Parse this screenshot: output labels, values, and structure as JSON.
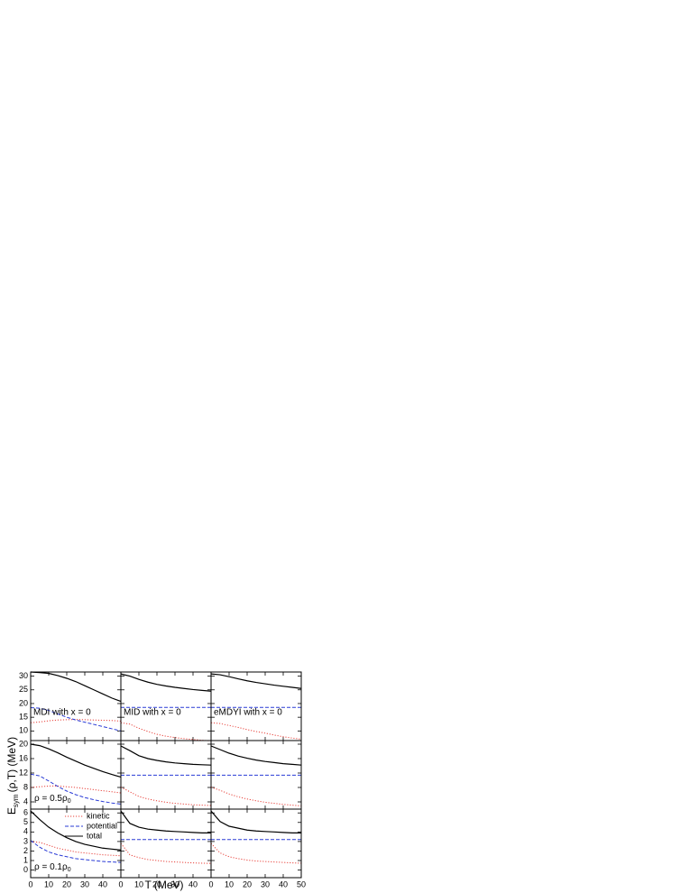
{
  "figure": {
    "xlabel": "T (MeV)",
    "ylabel": {
      "main": "E",
      "sub": "sym",
      "rest": "(ρ,T) (MeV)"
    }
  },
  "chart_data": [
    {
      "type": "line",
      "annotation": "MDI with x = 0",
      "x": [
        0,
        5,
        10,
        15,
        20,
        25,
        30,
        35,
        40,
        45,
        50
      ],
      "xlim": [
        0,
        50
      ],
      "ylim": [
        6.5,
        31.5
      ],
      "yticks": [
        10,
        15,
        20,
        25,
        30
      ],
      "series": [
        {
          "color": "#e8413a",
          "style": "dotted",
          "values": [
            13,
            13.3,
            13.7,
            14,
            14.1,
            14.2,
            14.1,
            14,
            13.9,
            13.8,
            13.6
          ]
        },
        {
          "color": "#2a3bd6",
          "style": "dashed",
          "values": [
            18.5,
            18.3,
            17.5,
            16.2,
            15,
            14,
            13.2,
            12.4,
            11.6,
            10.8,
            10
          ]
        },
        {
          "color": "#000000",
          "style": "solid",
          "values": [
            31.5,
            31.3,
            31,
            30.2,
            29.2,
            28,
            26.5,
            25,
            23.5,
            22,
            20.8
          ]
        }
      ]
    },
    {
      "type": "line",
      "annotation": "MID with x = 0",
      "x": [
        0,
        5,
        10,
        15,
        20,
        25,
        30,
        35,
        40,
        45,
        50
      ],
      "xlim": [
        0,
        50
      ],
      "ylim": [
        6.5,
        31.5
      ],
      "series": [
        {
          "color": "#e8413a",
          "style": "dotted",
          "values": [
            13,
            12.5,
            11,
            9.8,
            8.8,
            8.1,
            7.6,
            7.2,
            6.9,
            6.6,
            6.4
          ]
        },
        {
          "color": "#2a3bd6",
          "style": "dashed",
          "values": [
            18.6,
            18.6,
            18.6,
            18.6,
            18.6,
            18.6,
            18.6,
            18.6,
            18.6,
            18.6,
            18.6
          ]
        },
        {
          "color": "#000000",
          "style": "solid",
          "values": [
            30.8,
            30,
            28.8,
            27.8,
            27,
            26.4,
            25.9,
            25.5,
            25.1,
            24.8,
            24.5
          ]
        }
      ]
    },
    {
      "type": "line",
      "annotation": "eMDYI with x = 0",
      "x": [
        0,
        5,
        10,
        15,
        20,
        25,
        30,
        35,
        40,
        45,
        50
      ],
      "xlim": [
        0,
        50
      ],
      "ylim": [
        6.5,
        31.5
      ],
      "series": [
        {
          "color": "#e8413a",
          "style": "dotted",
          "values": [
            13,
            12.7,
            12,
            11.3,
            10.5,
            9.8,
            9.2,
            8.5,
            7.9,
            7.4,
            7
          ]
        },
        {
          "color": "#2a3bd6",
          "style": "dashed",
          "values": [
            18.6,
            18.6,
            18.6,
            18.6,
            18.6,
            18.6,
            18.6,
            18.6,
            18.6,
            18.6,
            18.6
          ]
        },
        {
          "color": "#000000",
          "style": "solid",
          "values": [
            30.8,
            30.5,
            29.8,
            29,
            28.3,
            27.7,
            27.2,
            26.7,
            26.3,
            25.9,
            25.5
          ]
        }
      ]
    },
    {
      "type": "line",
      "density": {
        "text": "ρ = 0.5ρ",
        "sub": "0"
      },
      "x": [
        0,
        5,
        10,
        15,
        20,
        25,
        30,
        35,
        40,
        45,
        50
      ],
      "xlim": [
        0,
        50
      ],
      "ylim": [
        2,
        21
      ],
      "yticks": [
        4,
        8,
        12,
        16,
        20
      ],
      "series": [
        {
          "color": "#e8413a",
          "style": "dotted",
          "values": [
            8,
            8.2,
            8.4,
            8.4,
            8.2,
            8,
            7.7,
            7.4,
            7.1,
            6.8,
            6.5
          ]
        },
        {
          "color": "#2a3bd6",
          "style": "dashed",
          "values": [
            11.7,
            11.2,
            9.8,
            8.3,
            7,
            6,
            5.2,
            4.6,
            4.1,
            3.7,
            3.4
          ]
        },
        {
          "color": "#000000",
          "style": "solid",
          "values": [
            20,
            19.6,
            18.7,
            17.6,
            16.4,
            15.3,
            14.2,
            13.3,
            12.4,
            11.6,
            10.9
          ]
        }
      ]
    },
    {
      "type": "line",
      "x": [
        0,
        5,
        10,
        15,
        20,
        25,
        30,
        35,
        40,
        45,
        50
      ],
      "xlim": [
        0,
        50
      ],
      "ylim": [
        2,
        21
      ],
      "series": [
        {
          "color": "#e8413a",
          "style": "dotted",
          "values": [
            8.1,
            6.8,
            5.5,
            4.8,
            4.3,
            3.9,
            3.6,
            3.4,
            3.2,
            3.1,
            3
          ]
        },
        {
          "color": "#2a3bd6",
          "style": "dashed",
          "values": [
            11.4,
            11.4,
            11.4,
            11.4,
            11.4,
            11.4,
            11.4,
            11.4,
            11.4,
            11.4,
            11.4
          ]
        },
        {
          "color": "#000000",
          "style": "solid",
          "values": [
            19.5,
            18.2,
            16.8,
            16,
            15.5,
            15.1,
            14.8,
            14.6,
            14.4,
            14.3,
            14.2
          ]
        }
      ]
    },
    {
      "type": "line",
      "x": [
        0,
        5,
        10,
        15,
        20,
        25,
        30,
        35,
        40,
        45,
        50
      ],
      "xlim": [
        0,
        50
      ],
      "ylim": [
        2,
        21
      ],
      "series": [
        {
          "color": "#e8413a",
          "style": "dotted",
          "values": [
            8.1,
            7.2,
            6.2,
            5.4,
            4.8,
            4.3,
            3.9,
            3.6,
            3.3,
            3.1,
            2.9
          ]
        },
        {
          "color": "#2a3bd6",
          "style": "dashed",
          "values": [
            11.4,
            11.4,
            11.4,
            11.4,
            11.4,
            11.4,
            11.4,
            11.4,
            11.4,
            11.4,
            11.4
          ]
        },
        {
          "color": "#000000",
          "style": "solid",
          "values": [
            19.5,
            18.5,
            17.5,
            16.7,
            16.1,
            15.6,
            15.2,
            14.9,
            14.6,
            14.4,
            14.2
          ]
        }
      ]
    },
    {
      "type": "line",
      "density": {
        "text": "ρ = 0.1ρ",
        "sub": "0"
      },
      "x": [
        0,
        5,
        10,
        15,
        20,
        25,
        30,
        35,
        40,
        45,
        50
      ],
      "xlim": [
        0,
        50
      ],
      "xticks": [
        0,
        10,
        20,
        30,
        40
      ],
      "ylim": [
        -0.8,
        6.4
      ],
      "yticks": [
        0,
        1,
        2,
        3,
        4,
        5,
        6
      ],
      "series": [
        {
          "name": "kinetic",
          "color": "#e8413a",
          "style": "dotted",
          "values": [
            3,
            2.9,
            2.6,
            2.3,
            2.1,
            1.9,
            1.8,
            1.7,
            1.6,
            1.55,
            1.5
          ]
        },
        {
          "name": "potential",
          "color": "#2a3bd6",
          "style": "dashed",
          "values": [
            3.1,
            2.4,
            1.9,
            1.6,
            1.4,
            1.2,
            1.1,
            1,
            0.9,
            0.85,
            0.8
          ]
        },
        {
          "name": "total",
          "color": "#000000",
          "style": "solid",
          "values": [
            6.2,
            5.3,
            4.5,
            3.9,
            3.4,
            3,
            2.7,
            2.5,
            2.3,
            2.2,
            2.1
          ]
        }
      ]
    },
    {
      "type": "line",
      "x": [
        0,
        5,
        10,
        15,
        20,
        25,
        30,
        35,
        40,
        45,
        50
      ],
      "xlim": [
        0,
        50
      ],
      "xticks": [
        0,
        10,
        20,
        30,
        40
      ],
      "ylim": [
        -0.8,
        6.4
      ],
      "series": [
        {
          "color": "#e8413a",
          "style": "dotted",
          "values": [
            2.8,
            1.6,
            1.3,
            1.1,
            1,
            0.9,
            0.85,
            0.8,
            0.75,
            0.72,
            0.7
          ]
        },
        {
          "color": "#2a3bd6",
          "style": "dashed",
          "values": [
            3.2,
            3.2,
            3.2,
            3.2,
            3.2,
            3.2,
            3.2,
            3.2,
            3.2,
            3.2,
            3.2
          ]
        },
        {
          "color": "#000000",
          "style": "solid",
          "values": [
            6.2,
            4.9,
            4.5,
            4.3,
            4.2,
            4.1,
            4.05,
            4,
            3.95,
            3.9,
            3.9
          ]
        }
      ]
    },
    {
      "type": "line",
      "x": [
        0,
        5,
        10,
        15,
        20,
        25,
        30,
        35,
        40,
        45,
        50
      ],
      "xlim": [
        0,
        50
      ],
      "xticks": [
        0,
        10,
        20,
        30,
        40,
        50
      ],
      "ylim": [
        -0.8,
        6.4
      ],
      "series": [
        {
          "color": "#e8413a",
          "style": "dotted",
          "values": [
            2.8,
            1.8,
            1.4,
            1.2,
            1.05,
            0.95,
            0.9,
            0.85,
            0.8,
            0.75,
            0.72
          ]
        },
        {
          "color": "#2a3bd6",
          "style": "dashed",
          "values": [
            3.2,
            3.2,
            3.2,
            3.2,
            3.2,
            3.2,
            3.2,
            3.2,
            3.2,
            3.2,
            3.2
          ]
        },
        {
          "color": "#000000",
          "style": "solid",
          "values": [
            6.2,
            5.1,
            4.6,
            4.4,
            4.2,
            4.1,
            4.05,
            4,
            3.95,
            3.9,
            3.9
          ]
        }
      ]
    }
  ]
}
